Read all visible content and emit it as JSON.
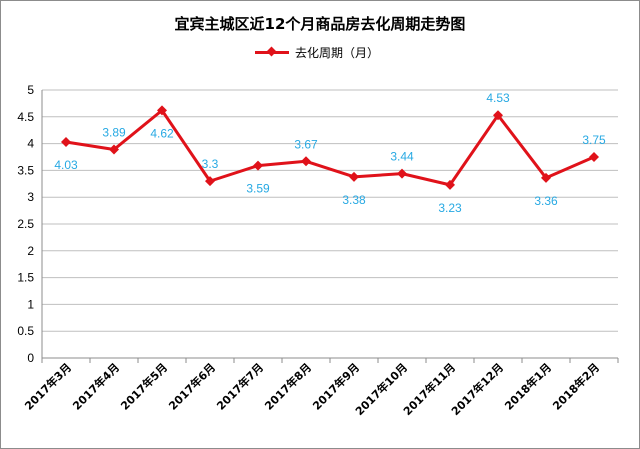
{
  "chart_data": {
    "type": "line",
    "title": "宜宾主城区近12个月商品房去化周期走势图",
    "categories": [
      "2017年3月",
      "2017年4月",
      "2017年5月",
      "2017年6月",
      "2017年7月",
      "2017年8月",
      "2017年9月",
      "2017年10月",
      "2017年11月",
      "2017年12月",
      "2018年1月",
      "2018年2月"
    ],
    "series": [
      {
        "name": "去化周期（月）",
        "values": [
          4.03,
          3.89,
          4.62,
          3.3,
          3.59,
          3.67,
          3.38,
          3.44,
          3.23,
          4.53,
          3.36,
          3.75
        ],
        "labels": [
          "4.03",
          "3.89",
          "4.62",
          "3.3",
          "3.59",
          "3.67",
          "3.38",
          "3.44",
          "3.23",
          "4.53",
          "3.36",
          "3.75"
        ]
      }
    ],
    "yticks": [
      "0",
      "0.5",
      "1",
      "1.5",
      "2",
      "2.5",
      "3",
      "3.5",
      "4",
      "4.5",
      "5"
    ],
    "ylim": [
      0,
      5
    ],
    "grid": true,
    "legend_position": "top",
    "color": "#e0121a",
    "label_color": "#27a9e3"
  }
}
